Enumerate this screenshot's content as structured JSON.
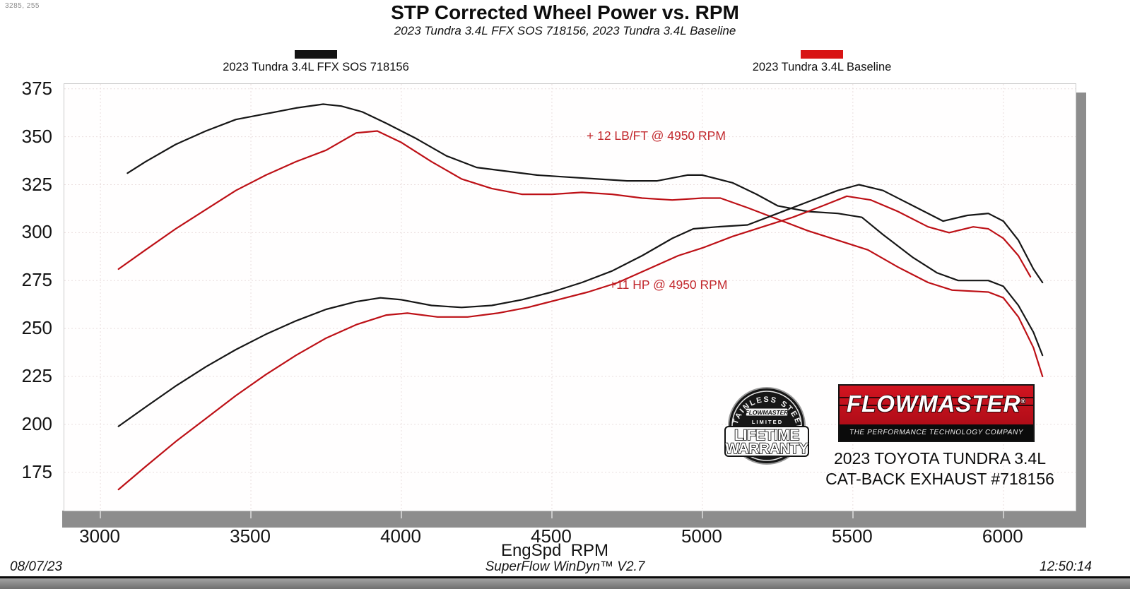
{
  "cursor_readout": "3285, 255",
  "header": {
    "title": "STP Corrected Wheel Power vs. RPM",
    "subtitle": "2023 Tundra 3.4L FFX SOS 718156, 2023 Tundra 3.4L Baseline"
  },
  "legend": [
    {
      "label": "2023 Tundra 3.4L FFX SOS 718156",
      "color": "#141414"
    },
    {
      "label": "2023 Tundra 3.4L Baseline",
      "color": "#d81414"
    }
  ],
  "annotations": [
    {
      "text": "+ 12 LB/FT @ 4950 RPM"
    },
    {
      "text": "+11 HP @ 4950 RPM"
    }
  ],
  "watermark": {
    "badge": {
      "arc_text": "STAINLESS STEEL",
      "mini_brand": "FLOWMASTER",
      "limited": "L I M I T E D",
      "line1": "LIFETIME",
      "line2": "WARRANTY"
    },
    "logo": {
      "brand": "FLOWMASTER",
      "mark": "®",
      "tagline": "THE PERFORMANCE TECHNOLOGY COMPANY"
    },
    "caption_line1": "2023 TOYOTA TUNDRA 3.4L",
    "caption_line2": "CAT-BACK EXHAUST #718156"
  },
  "footer": {
    "date": "08/07/23",
    "software": "SuperFlow WinDyn™ V2.7",
    "time": "12:50:14"
  },
  "chart_data": {
    "type": "line",
    "title": "STP Corrected Wheel Power vs. RPM",
    "subtitle": "2023 Tundra 3.4L FFX SOS 718156, 2023 Tundra 3.4L Baseline",
    "xlabel": "EngSpd  RPM",
    "ylabel": "",
    "xlim": [
      2880,
      6240
    ],
    "ylim": [
      155,
      377.5
    ],
    "x_ticks": [
      3000,
      3500,
      4000,
      4500,
      5000,
      5500,
      6000
    ],
    "y_ticks": [
      175,
      200,
      225,
      250,
      275,
      300,
      325,
      350,
      375
    ],
    "grid": true,
    "grid_color": "#e9dddd",
    "legend_position": "top",
    "line_width": 2.2,
    "series": [
      {
        "name": "2023 Tundra 3.4L FFX SOS 718156 — Torque (LB-FT)",
        "color": "#161616",
        "points": [
          [
            3090,
            331
          ],
          [
            3150,
            337
          ],
          [
            3250,
            346
          ],
          [
            3350,
            353
          ],
          [
            3450,
            359
          ],
          [
            3550,
            362
          ],
          [
            3650,
            365
          ],
          [
            3740,
            367
          ],
          [
            3800,
            366
          ],
          [
            3870,
            363
          ],
          [
            3950,
            357
          ],
          [
            4050,
            349
          ],
          [
            4150,
            340
          ],
          [
            4250,
            334
          ],
          [
            4350,
            332
          ],
          [
            4450,
            330
          ],
          [
            4550,
            329
          ],
          [
            4650,
            328
          ],
          [
            4750,
            327
          ],
          [
            4850,
            327
          ],
          [
            4950,
            330
          ],
          [
            5000,
            330
          ],
          [
            5100,
            326
          ],
          [
            5180,
            320
          ],
          [
            5250,
            314
          ],
          [
            5350,
            311
          ],
          [
            5450,
            310
          ],
          [
            5530,
            308
          ],
          [
            5600,
            299
          ],
          [
            5700,
            287
          ],
          [
            5780,
            279
          ],
          [
            5850,
            275
          ],
          [
            5950,
            275
          ],
          [
            6000,
            272
          ],
          [
            6050,
            262
          ],
          [
            6100,
            248
          ],
          [
            6130,
            236
          ]
        ]
      },
      {
        "name": "2023 Tundra 3.4L Baseline — Torque (LB-FT)",
        "color": "#bd1016",
        "points": [
          [
            3060,
            281
          ],
          [
            3150,
            291
          ],
          [
            3250,
            302
          ],
          [
            3350,
            312
          ],
          [
            3450,
            322
          ],
          [
            3550,
            330
          ],
          [
            3650,
            337
          ],
          [
            3750,
            343
          ],
          [
            3850,
            352
          ],
          [
            3920,
            353
          ],
          [
            4000,
            347
          ],
          [
            4100,
            337
          ],
          [
            4200,
            328
          ],
          [
            4300,
            323
          ],
          [
            4400,
            320
          ],
          [
            4500,
            320
          ],
          [
            4600,
            321
          ],
          [
            4700,
            320
          ],
          [
            4800,
            318
          ],
          [
            4900,
            317
          ],
          [
            5000,
            318
          ],
          [
            5060,
            318
          ],
          [
            5150,
            313
          ],
          [
            5250,
            307
          ],
          [
            5350,
            301
          ],
          [
            5450,
            296
          ],
          [
            5550,
            291
          ],
          [
            5650,
            282
          ],
          [
            5750,
            274
          ],
          [
            5830,
            270
          ],
          [
            5950,
            269
          ],
          [
            6000,
            266
          ],
          [
            6050,
            256
          ],
          [
            6100,
            240
          ],
          [
            6130,
            225
          ]
        ]
      },
      {
        "name": "2023 Tundra 3.4L FFX SOS 718156 — Power (HP)",
        "color": "#161616",
        "points": [
          [
            3060,
            199
          ],
          [
            3150,
            209
          ],
          [
            3250,
            220
          ],
          [
            3350,
            230
          ],
          [
            3450,
            239
          ],
          [
            3550,
            247
          ],
          [
            3650,
            254
          ],
          [
            3750,
            260
          ],
          [
            3850,
            264
          ],
          [
            3930,
            266
          ],
          [
            4000,
            265
          ],
          [
            4100,
            262
          ],
          [
            4200,
            261
          ],
          [
            4300,
            262
          ],
          [
            4400,
            265
          ],
          [
            4500,
            269
          ],
          [
            4600,
            274
          ],
          [
            4700,
            280
          ],
          [
            4800,
            288
          ],
          [
            4900,
            297
          ],
          [
            4970,
            302
          ],
          [
            5050,
            303
          ],
          [
            5150,
            304
          ],
          [
            5250,
            310
          ],
          [
            5350,
            316
          ],
          [
            5450,
            322
          ],
          [
            5520,
            325
          ],
          [
            5600,
            322
          ],
          [
            5700,
            314
          ],
          [
            5800,
            306
          ],
          [
            5880,
            309
          ],
          [
            5950,
            310
          ],
          [
            6000,
            306
          ],
          [
            6050,
            296
          ],
          [
            6100,
            281
          ],
          [
            6130,
            274
          ]
        ]
      },
      {
        "name": "2023 Tundra 3.4L Baseline — Power (HP)",
        "color": "#bd1016",
        "points": [
          [
            3060,
            166
          ],
          [
            3150,
            178
          ],
          [
            3250,
            191
          ],
          [
            3350,
            203
          ],
          [
            3450,
            215
          ],
          [
            3550,
            226
          ],
          [
            3650,
            236
          ],
          [
            3750,
            245
          ],
          [
            3850,
            252
          ],
          [
            3950,
            257
          ],
          [
            4020,
            258
          ],
          [
            4120,
            256
          ],
          [
            4220,
            256
          ],
          [
            4320,
            258
          ],
          [
            4420,
            261
          ],
          [
            4520,
            265
          ],
          [
            4620,
            269
          ],
          [
            4720,
            274
          ],
          [
            4820,
            281
          ],
          [
            4920,
            288
          ],
          [
            5000,
            292
          ],
          [
            5100,
            298
          ],
          [
            5200,
            303
          ],
          [
            5300,
            308
          ],
          [
            5400,
            314
          ],
          [
            5480,
            319
          ],
          [
            5560,
            317
          ],
          [
            5650,
            311
          ],
          [
            5750,
            303
          ],
          [
            5820,
            300
          ],
          [
            5900,
            303
          ],
          [
            5950,
            302
          ],
          [
            6000,
            297
          ],
          [
            6050,
            288
          ],
          [
            6090,
            277
          ]
        ]
      }
    ],
    "annotations": [
      {
        "text": "+ 12 LB/FT @ 4950 RPM",
        "color": "#c2282d"
      },
      {
        "text": "+11 HP @ 4950 RPM",
        "color": "#c2282d"
      }
    ]
  }
}
